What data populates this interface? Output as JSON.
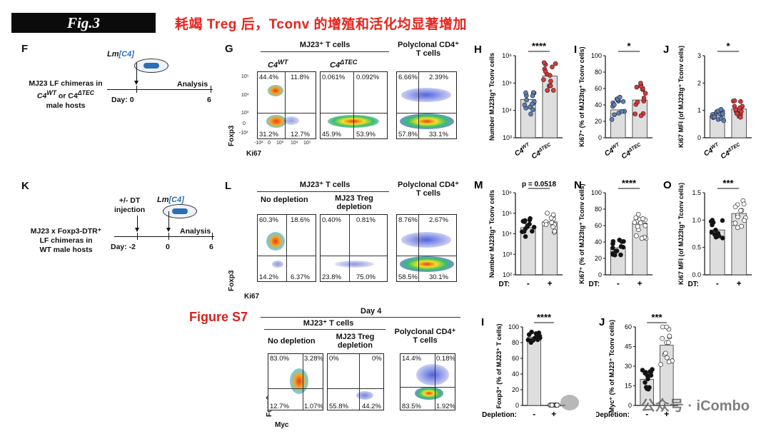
{
  "header": {
    "badge": "Fig.3",
    "headline": "耗竭 Treg 后，Tconv 的增殖和活化均显著增加"
  },
  "panels": {
    "F": {
      "label": "F",
      "lm_prefix": "Lm",
      "lm_c4": "[C4]",
      "left_text_1": "MJ23 LF chimeras in",
      "left_text_2": "C4",
      "left_text_2_sup": "WT",
      "left_text_2_mid": " or C4",
      "left_text_2_sup2": "ΔTEC",
      "left_text_3": "male hosts",
      "day_label": "Day:",
      "day0": "0",
      "analysis": "Analysis",
      "day6": "6"
    },
    "G": {
      "label": "G",
      "head_mj23": "MJ23⁺ T cells",
      "head_poly": "Polyclonal CD4⁺ T cells",
      "sub_wt": "C4",
      "sub_wt_sup": "WT",
      "sub_tec": "C4",
      "sub_tec_sup": "ΔTEC",
      "ylabel": "Foxp3",
      "xlabel": "Ki67",
      "plot1": [
        "44.4%",
        "11.8%",
        "31.2%",
        "12.7%"
      ],
      "plot2": [
        "0.061%",
        "0.092%",
        "45.9%",
        "53.9%"
      ],
      "plot3": [
        "6.66%",
        "2.39%",
        "57.8%",
        "33.1%"
      ],
      "yticks": [
        "10⁵",
        "10⁴",
        "10³",
        "0",
        "-10³"
      ],
      "xticks": [
        "-10³",
        "0",
        "10³",
        "10⁴",
        "10⁵"
      ]
    },
    "H": {
      "label": "H",
      "ylabel": "Number MJ23tg⁺ Tconv cells",
      "sig": "****",
      "cat1": "C4",
      "cat1_sup": "WT",
      "cat2": "C4",
      "cat2_sup": "ΔTEC",
      "yticks": [
        "10⁶",
        "10⁵",
        "10⁴",
        "10³"
      ]
    },
    "I": {
      "label": "I",
      "ylabel": "Ki67⁺ (% of MJ23tg⁺ Tconv cells)",
      "sig": "*",
      "cat1": "C4",
      "cat1_sup": "WT",
      "cat2": "C4",
      "cat2_sup": "ΔTEC",
      "yticks": [
        "100",
        "80",
        "60",
        "40",
        "20",
        "0"
      ]
    },
    "J": {
      "label": "J",
      "ylabel": "Ki67 MFI (of MJ23tg⁺ Tconv cells)",
      "sig": "*",
      "cat1": "C4",
      "cat1_sup": "WT",
      "cat2": "C4",
      "cat2_sup": "ΔTEC",
      "yticks": [
        "3",
        "2",
        "1",
        "0"
      ]
    },
    "K": {
      "label": "K",
      "dt_text_1": "+/- DT",
      "dt_text_2": "injection",
      "lm_prefix": "Lm",
      "lm_c4": "[C4]",
      "left_text_1": "MJ23 x Foxp3-DTR⁺",
      "left_text_2": "LF chimeras in",
      "left_text_3": "WT male hosts",
      "day_label": "Day:",
      "dm2": "-2",
      "d0": "0",
      "analysis": "Analysis",
      "d6": "6"
    },
    "L": {
      "label": "L",
      "head_mj23": "MJ23⁺ T cells",
      "head_poly": "Polyclonal CD4⁺ T cells",
      "sub_nodep": "No depletion",
      "sub_dep": "MJ23 Treg depletion",
      "ylabel": "Foxp3",
      "xlabel": "Ki67",
      "plot1": [
        "60.3%",
        "18.6%",
        "14.2%",
        "6.37%"
      ],
      "plot2": [
        "0.40%",
        "0.81%",
        "23.8%",
        "75.0%"
      ],
      "plot3": [
        "8.76%",
        "2.67%",
        "58.5%",
        "30.1%"
      ]
    },
    "M": {
      "label": "M",
      "ylabel": "Number MJ23tg⁺ Tconv cells",
      "sig": "p = 0.0518",
      "dt": "DT:",
      "minus": "-",
      "plus": "+",
      "yticks": [
        "10⁶",
        "10⁵",
        "10⁴",
        "10³",
        "10²"
      ]
    },
    "N": {
      "label": "N",
      "ylabel": "Ki67⁺ (% of MJ23tg⁺ Tconv cells)",
      "sig": "****",
      "dt": "DT:",
      "minus": "-",
      "plus": "+",
      "yticks": [
        "100",
        "80",
        "60",
        "40",
        "20",
        "0"
      ]
    },
    "O": {
      "label": "O",
      "ylabel": "Ki67 MFI (of MJ23tg⁺ Tconv cells)",
      "sig": "***",
      "dt": "DT:",
      "minus": "-",
      "plus": "+",
      "yticks": [
        "1.5",
        "1.0",
        "0.5",
        "0.0"
      ]
    },
    "S7": {
      "title": "Figure S7",
      "day": "Day 4",
      "head_mj23": "MJ23⁺ T cells",
      "head_poly": "Polyclonal CD4⁺ T cells",
      "sub_nodep": "No depletion",
      "sub_dep": "MJ23 Treg depletion",
      "ylabel": "Foxp3",
      "xlabel": "Myc",
      "plot1": [
        "83.0%",
        "3.28%",
        "12.7%",
        "1.07%"
      ],
      "plot2": [
        "0%",
        "0%",
        "55.8%",
        "44.2%"
      ],
      "plot3": [
        "14.4%",
        "0.18%",
        "83.5%",
        "1.92%"
      ]
    },
    "S7I": {
      "label": "I",
      "ylabel": "Foxp3⁺ (% of MJ23⁺ T cells)",
      "sig": "****",
      "dep": "Depletion:",
      "minus": "-",
      "plus": "+",
      "yticks": [
        "100",
        "80",
        "60",
        "40",
        "20",
        "0"
      ]
    },
    "S7J": {
      "label": "J",
      "ylabel": "Myc⁺ (% of MJ23⁺ Tconv cells)",
      "sig": "***",
      "dep": "Depletion:",
      "minus": "-",
      "plus": "+",
      "yticks": [
        "60",
        "45",
        "30",
        "15",
        "0"
      ]
    }
  },
  "watermark": "公众号 · iCombo",
  "chart_data": [
    {
      "panel": "H",
      "type": "bar",
      "scale": "log",
      "categories": [
        "C4WT",
        "C4ΔTEC"
      ],
      "values": [
        25000,
        180000
      ],
      "ylim": [
        1000,
        1000000
      ],
      "series_colors": [
        "#5b7fb8",
        "#d9373a"
      ]
    },
    {
      "panel": "I",
      "type": "bar",
      "categories": [
        "C4WT",
        "C4ΔTEC"
      ],
      "values": [
        34,
        46
      ],
      "ylim": [
        0,
        100
      ],
      "series_colors": [
        "#5b7fb8",
        "#d9373a"
      ]
    },
    {
      "panel": "J",
      "type": "bar",
      "categories": [
        "C4WT",
        "C4ΔTEC"
      ],
      "values": [
        0.8,
        1.05
      ],
      "ylim": [
        0,
        3
      ],
      "series_colors": [
        "#5b7fb8",
        "#d9373a"
      ]
    },
    {
      "panel": "M",
      "type": "bar",
      "scale": "log",
      "categories": [
        "-",
        "+"
      ],
      "values": [
        20000,
        38000
      ],
      "ylim": [
        100,
        1000000
      ],
      "series_colors": [
        "#111111",
        "#ffffff"
      ]
    },
    {
      "panel": "N",
      "type": "bar",
      "categories": [
        "-",
        "+"
      ],
      "values": [
        33,
        63
      ],
      "ylim": [
        0,
        100
      ],
      "series_colors": [
        "#111111",
        "#ffffff"
      ]
    },
    {
      "panel": "O",
      "type": "bar",
      "categories": [
        "-",
        "+"
      ],
      "values": [
        0.82,
        1.12
      ],
      "ylim": [
        0,
        1.5
      ],
      "series_colors": [
        "#111111",
        "#ffffff"
      ]
    },
    {
      "panel": "S7-I",
      "type": "bar",
      "categories": [
        "-",
        "+"
      ],
      "values": [
        87,
        0.5
      ],
      "ylim": [
        0,
        100
      ],
      "series_colors": [
        "#111111",
        "#ffffff"
      ]
    },
    {
      "panel": "S7-J",
      "type": "bar",
      "categories": [
        "-",
        "+"
      ],
      "values": [
        20,
        46
      ],
      "ylim": [
        0,
        60
      ],
      "series_colors": [
        "#111111",
        "#ffffff"
      ]
    }
  ]
}
